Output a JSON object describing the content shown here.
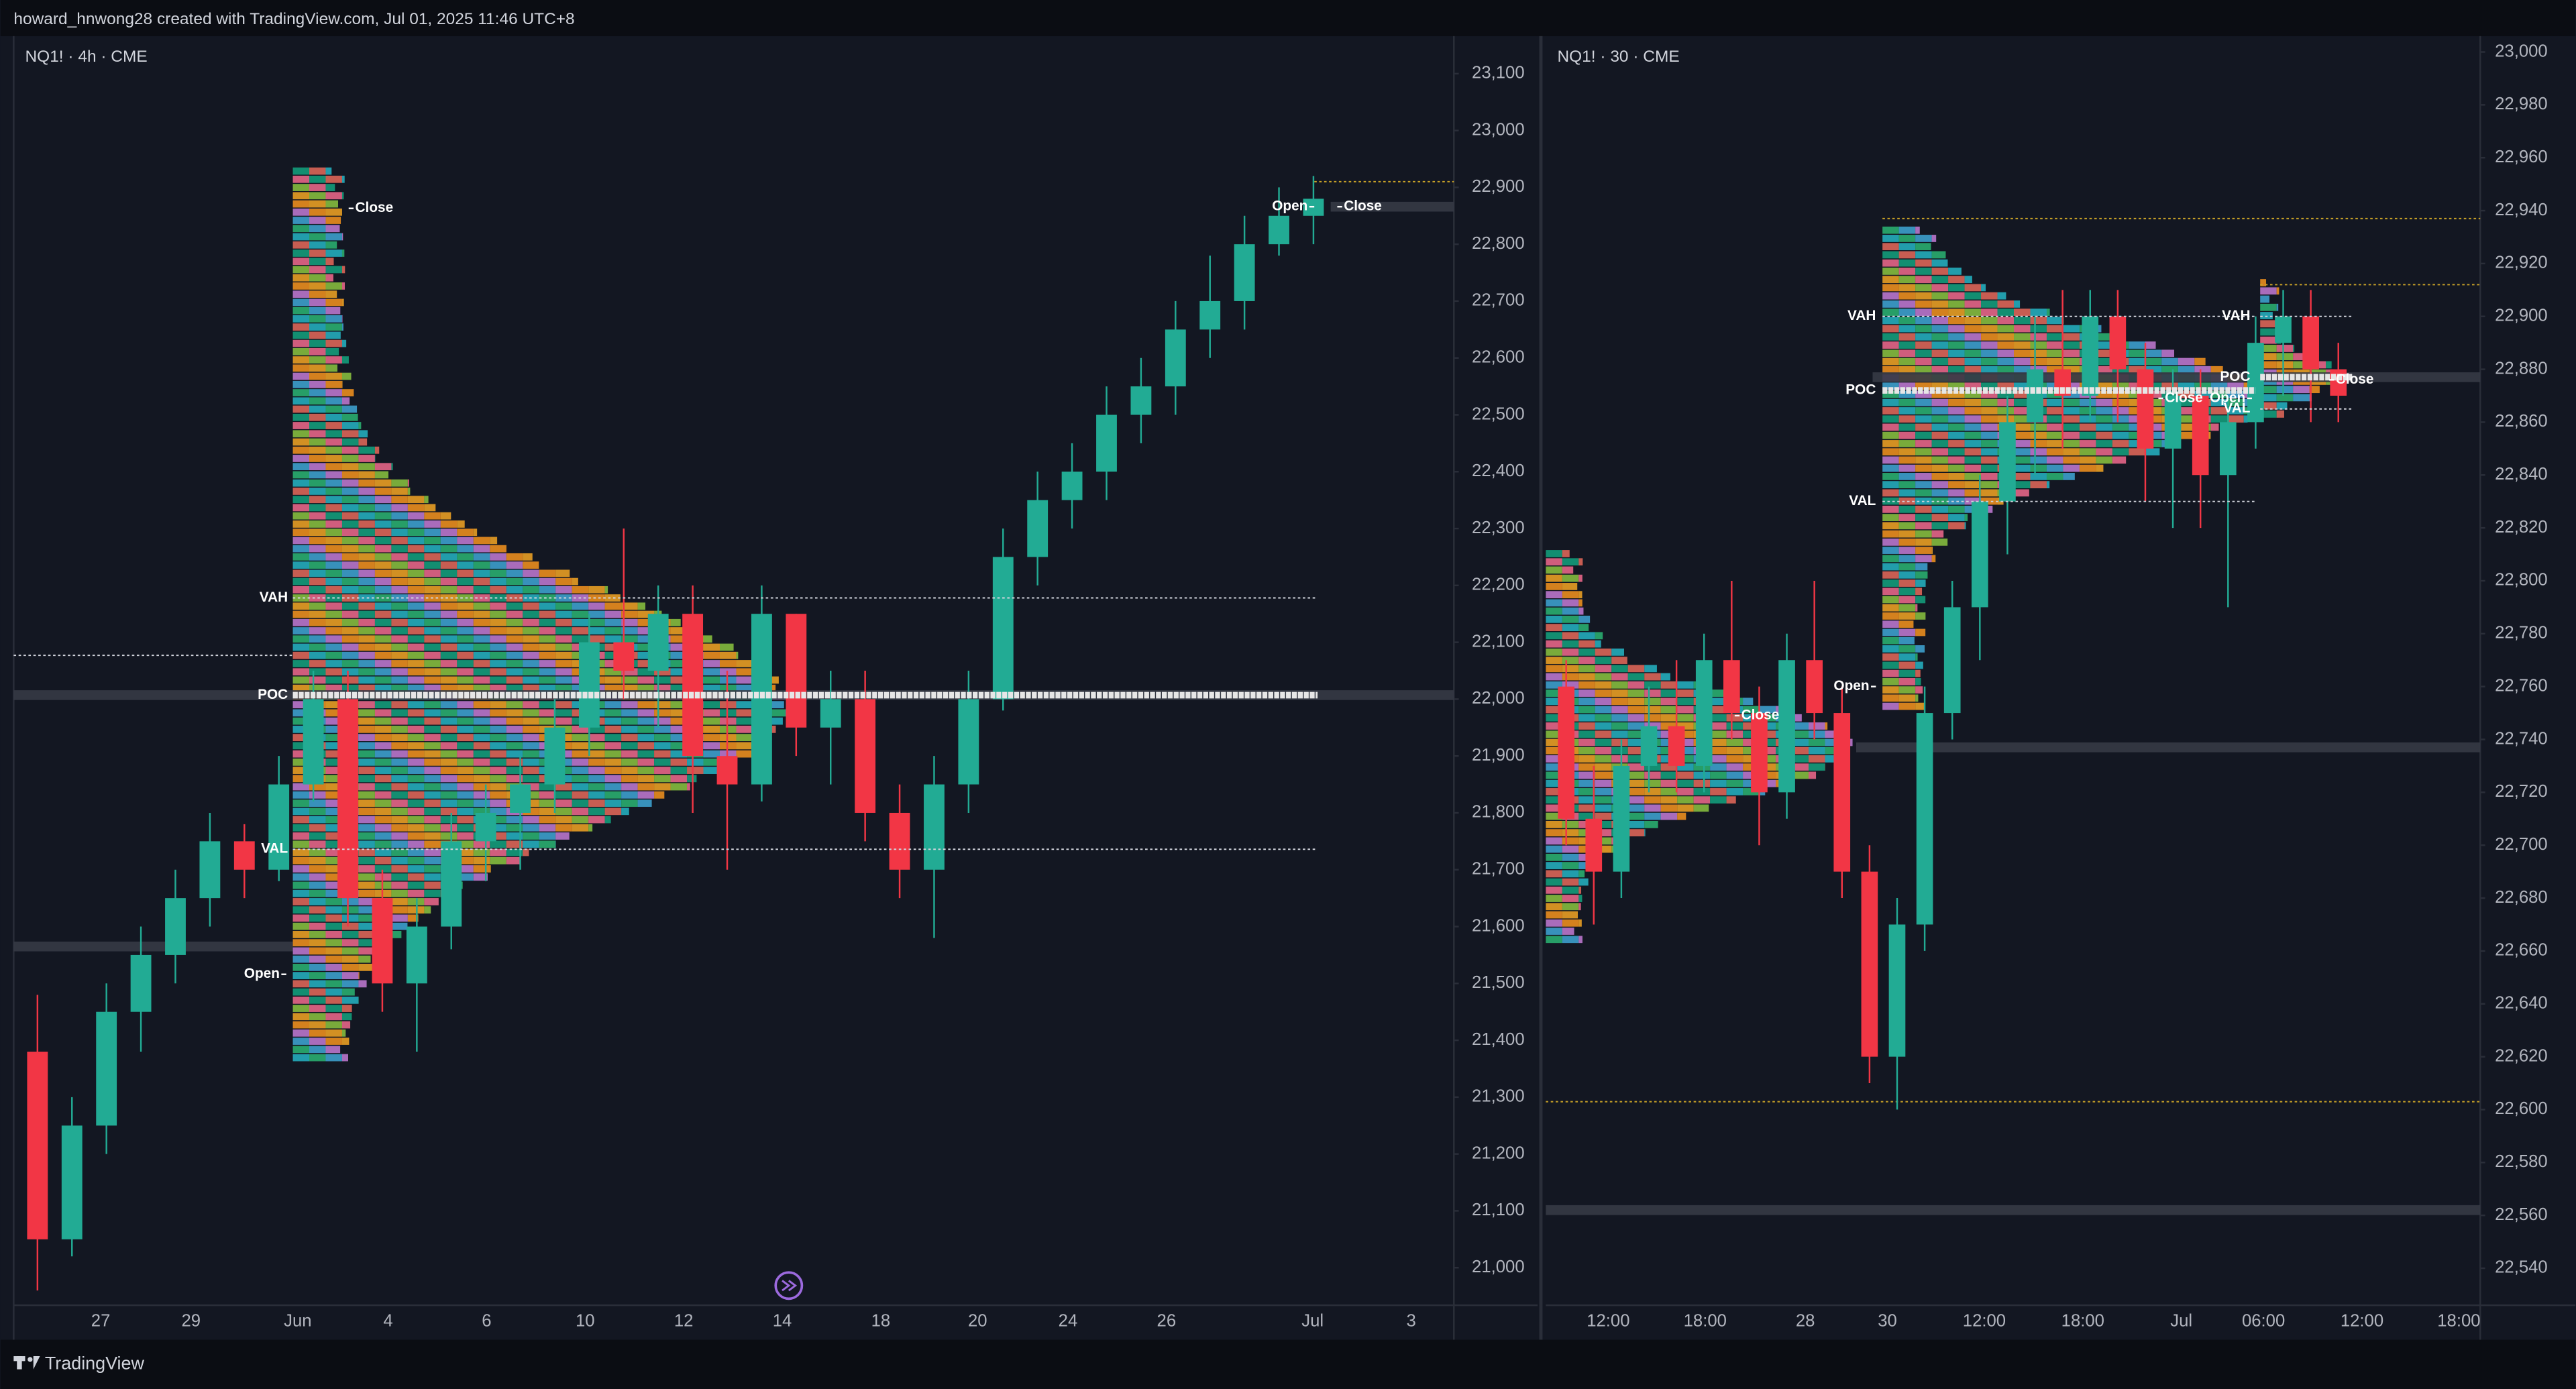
{
  "header": {
    "text": "howard_hnwong28 created with TradingView.com, Jul 01, 2025 11:46 UTC+8"
  },
  "footer": {
    "brand": "TradingView"
  },
  "chart_data": [
    {
      "type": "candlestick",
      "title": "NQ1! · 4h · CME",
      "categories": [
        "27",
        "29",
        "Jun",
        "4",
        "6",
        "10",
        "12",
        "14",
        "18",
        "20",
        "24",
        "26",
        "Jul",
        "3"
      ],
      "open": [
        21380,
        21050,
        21250,
        21450,
        21550,
        21650,
        21750,
        21700,
        21850,
        22000,
        21650,
        21500,
        21600,
        21750,
        21800,
        21850,
        21950,
        22100,
        22050,
        22150,
        21900,
        21850,
        22150,
        21950,
        22000,
        21800,
        21700,
        21850,
        22000,
        22250,
        22350,
        22400,
        22500,
        22550,
        22650,
        22700,
        22800,
        22850
      ],
      "high": [
        21480,
        21300,
        21500,
        21600,
        21700,
        21800,
        21780,
        21900,
        22050,
        22050,
        21700,
        21650,
        21800,
        21850,
        21900,
        22000,
        22150,
        22300,
        22200,
        22200,
        22050,
        22200,
        22150,
        22050,
        22050,
        21850,
        21900,
        22050,
        22300,
        22400,
        22450,
        22550,
        22600,
        22700,
        22780,
        22850,
        22900,
        22920
      ],
      "low": [
        20960,
        21020,
        21200,
        21380,
        21500,
        21600,
        21650,
        21680,
        21820,
        21600,
        21450,
        21380,
        21560,
        21680,
        21700,
        21800,
        21900,
        22000,
        21950,
        21800,
        21700,
        21820,
        21900,
        21850,
        21750,
        21650,
        21580,
        21800,
        21980,
        22200,
        22300,
        22350,
        22450,
        22500,
        22600,
        22650,
        22780,
        22800
      ],
      "close": [
        21050,
        21250,
        21450,
        21550,
        21650,
        21750,
        21700,
        21850,
        22000,
        21650,
        21500,
        21600,
        21750,
        21800,
        21850,
        21950,
        22100,
        22050,
        22150,
        21900,
        21850,
        22150,
        21950,
        22000,
        21800,
        21700,
        21850,
        22000,
        22250,
        22350,
        22400,
        22500,
        22550,
        22650,
        22700,
        22800,
        22850,
        22880
      ],
      "up_color": "#22ab94",
      "down_color": "#f23645",
      "ylim": [
        20934,
        23166
      ],
      "yticks": [
        {
          "value": 21000,
          "label": "21,000"
        },
        {
          "value": 21100,
          "label": "21,100"
        },
        {
          "value": 21200,
          "label": "21,200"
        },
        {
          "value": 21300,
          "label": "21,300"
        },
        {
          "value": 21400,
          "label": "21,400"
        },
        {
          "value": 21500,
          "label": "21,500"
        },
        {
          "value": 21600,
          "label": "21,600"
        },
        {
          "value": 21700,
          "label": "21,700"
        },
        {
          "value": 21800,
          "label": "21,800"
        },
        {
          "value": 21900,
          "label": "21,900"
        },
        {
          "value": 22000,
          "label": "22,000"
        },
        {
          "value": 22100,
          "label": "22,100"
        },
        {
          "value": 22200,
          "label": "22,200"
        },
        {
          "value": 22300,
          "label": "22,300"
        },
        {
          "value": 22400,
          "label": "22,400"
        },
        {
          "value": 22500,
          "label": "22,500"
        },
        {
          "value": 22600,
          "label": "22,600"
        },
        {
          "value": 22700,
          "label": "22,700"
        },
        {
          "value": 22800,
          "label": "22,800"
        },
        {
          "value": 22900,
          "label": "22,900"
        },
        {
          "value": 23000,
          "label": "23,000"
        },
        {
          "value": 23100,
          "label": "23,100"
        }
      ],
      "levels": [
        {
          "label": "VAH",
          "value": 22178
        },
        {
          "label": "POC",
          "value": 22007
        },
        {
          "label": "VAL",
          "value": 21736
        }
      ],
      "annotations": [
        {
          "label": "Close",
          "value": 22863
        },
        {
          "label": "Open",
          "value": 21516
        },
        {
          "label": "Open",
          "value": 22866
        },
        {
          "label": "Close",
          "value": 22866
        }
      ],
      "bands": [
        22007,
        21565,
        22866
      ],
      "dotted_lines": [
        22910,
        22077
      ]
    },
    {
      "type": "candlestick",
      "title": "NQ1! · 30 · CME",
      "categories": [
        "12:00",
        "18:00",
        "28",
        "30",
        "12:00",
        "18:00",
        "Jul",
        "06:00",
        "12:00",
        "18:00"
      ],
      "open": [
        22760,
        22710,
        22690,
        22730,
        22745,
        22730,
        22770,
        22750,
        22720,
        22770,
        22750,
        22690,
        22620,
        22670,
        22750,
        22790,
        22830,
        22860,
        22880,
        22870,
        22900,
        22880,
        22850,
        22870,
        22840,
        22860,
        22890,
        22900,
        22880
      ],
      "high": [
        22770,
        22730,
        22740,
        22760,
        22770,
        22780,
        22800,
        22760,
        22780,
        22800,
        22760,
        22700,
        22680,
        22760,
        22800,
        22840,
        22870,
        22900,
        22910,
        22910,
        22910,
        22890,
        22880,
        22880,
        22870,
        22900,
        22910,
        22910,
        22890
      ],
      "low": [
        22700,
        22670,
        22680,
        22720,
        22720,
        22720,
        22740,
        22700,
        22710,
        22740,
        22680,
        22610,
        22600,
        22660,
        22740,
        22770,
        22810,
        22840,
        22850,
        22860,
        22860,
        22830,
        22820,
        22820,
        22790,
        22850,
        22870,
        22860,
        22860
      ],
      "close": [
        22710,
        22690,
        22730,
        22745,
        22730,
        22770,
        22750,
        22720,
        22770,
        22750,
        22690,
        22620,
        22670,
        22750,
        22790,
        22830,
        22860,
        22880,
        22870,
        22900,
        22880,
        22850,
        22870,
        22840,
        22860,
        22890,
        22900,
        22880,
        22870
      ],
      "up_color": "#22ab94",
      "down_color": "#f23645",
      "ylim": [
        22526,
        23006
      ],
      "yticks": [
        {
          "value": 22540,
          "label": "22,540"
        },
        {
          "value": 22560,
          "label": "22,560"
        },
        {
          "value": 22580,
          "label": "22,580"
        },
        {
          "value": 22600,
          "label": "22,600"
        },
        {
          "value": 22620,
          "label": "22,620"
        },
        {
          "value": 22640,
          "label": "22,640"
        },
        {
          "value": 22660,
          "label": "22,660"
        },
        {
          "value": 22680,
          "label": "22,680"
        },
        {
          "value": 22700,
          "label": "22,700"
        },
        {
          "value": 22720,
          "label": "22,720"
        },
        {
          "value": 22740,
          "label": "22,740"
        },
        {
          "value": 22760,
          "label": "22,760"
        },
        {
          "value": 22780,
          "label": "22,780"
        },
        {
          "value": 22800,
          "label": "22,800"
        },
        {
          "value": 22820,
          "label": "22,820"
        },
        {
          "value": 22840,
          "label": "22,840"
        },
        {
          "value": 22860,
          "label": "22,860"
        },
        {
          "value": 22880,
          "label": "22,880"
        },
        {
          "value": 22900,
          "label": "22,900"
        },
        {
          "value": 22920,
          "label": "22,920"
        },
        {
          "value": 22940,
          "label": "22,940"
        },
        {
          "value": 22960,
          "label": "22,960"
        },
        {
          "value": 22980,
          "label": "22,980"
        },
        {
          "value": 23000,
          "label": "23,000"
        }
      ],
      "levels": [
        {
          "label": "VAH",
          "value": 22900
        },
        {
          "label": "POC",
          "value": 22872
        },
        {
          "label": "VAL",
          "value": 22830
        },
        {
          "label": "VAH",
          "value": 22900
        },
        {
          "label": "POC",
          "value": 22877
        },
        {
          "label": "VAL",
          "value": 22865
        }
      ],
      "annotations": [
        {
          "label": "Close",
          "value": 22749
        },
        {
          "label": "Open",
          "value": 22760
        },
        {
          "label": "Close",
          "value": 22869
        },
        {
          "label": "Open",
          "value": 22869
        },
        {
          "label": "Close",
          "value": 22876
        }
      ],
      "bands": [
        22877,
        22737,
        22562
      ],
      "dotted_lines": [
        22937,
        22912,
        22603
      ]
    }
  ]
}
